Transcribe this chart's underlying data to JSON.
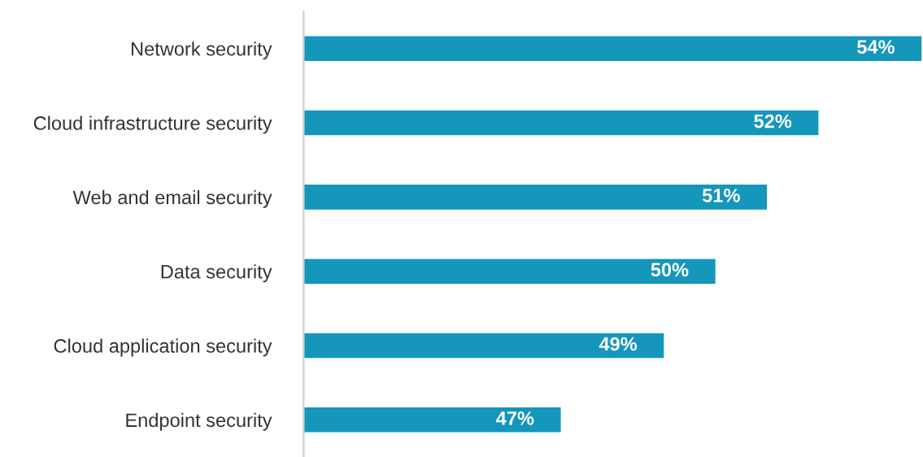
{
  "chart_data": {
    "type": "bar",
    "orientation": "horizontal",
    "categories": [
      "Network security",
      "Cloud infrastructure security",
      "Web and email security",
      "Data security",
      "Cloud application security",
      "Endpoint security"
    ],
    "values": [
      54,
      52,
      51,
      50,
      49,
      47
    ],
    "value_labels": [
      "54%",
      "52%",
      "51%",
      "50%",
      "49%",
      "47%"
    ],
    "color": "#1596bb",
    "xlim": [
      42,
      54
    ],
    "tick_labels": "y",
    "grid": false,
    "legend": false
  }
}
